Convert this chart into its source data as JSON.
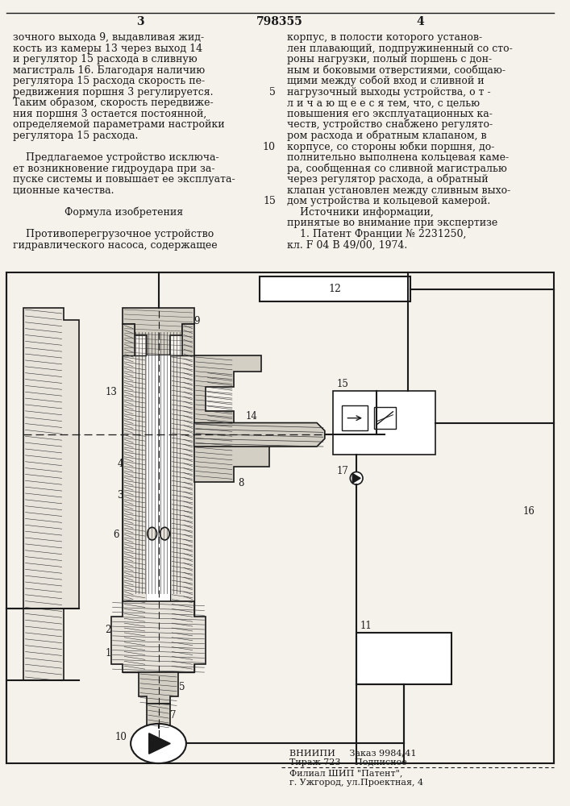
{
  "page_width": 7.07,
  "page_height": 10.0,
  "bg_color": "#f5f2ec",
  "text_color": "#1a1a1a",
  "font_family": "DejaVu Serif",
  "top_header": {
    "left_number": "3",
    "center_number": "798355",
    "right_number": "4"
  },
  "left_col_lines": [
    "зочного выхода 9, выдавливая жид-",
    "кость из камеры 13 через выход 14",
    "и регулятор 15 расхода в сливную",
    "магистраль 16. Благодаря наличию",
    "регулятора 15 расхода скорость пе-",
    "редвижения поршня 3 регулируется.",
    "Таким образом, скорость передвиже-",
    "ния поршня 3 остается постоянной,",
    "определяемой параметрами настройки",
    "регулятора 15 расхода.",
    "",
    "    Предлагаемое устройство исключа-",
    "ет возникновение гидроудара при за-",
    "пуске системы и повышает ее эксплуата-",
    "ционные качества.",
    "",
    "Формула изобретения",
    "",
    "    Противоперегрузочное устройство",
    "гидравлического насоса, содержащее"
  ],
  "right_col_lines": [
    "корпус, в полости которого установ-",
    "лен плавающий, подпружиненный со сто-",
    "роны нагрузки, полый поршень с дон-",
    "ным и боковыми отверстиями, сообщаю-",
    "щими между собой вход и сливной и",
    "нагрузочный выходы устройства, о т -",
    "л и ч а ю щ е е с я тем, что, с целью",
    "повышения его эксплуатационных ка-",
    "честв, устройство снабжено регулято-",
    "ром расхода и обратным клапаном, в",
    "корпусе, со стороны юбки поршня, до-",
    "полнительно выполнена кольцевая каме-",
    "ра, сообщенная со сливной магистралью",
    "через регулятор расхода, а обратный",
    "клапан установлен между сливным выхо-",
    "дом устройства и кольцевой камерой.",
    "    Источники информации,",
    "принятые во внимание при экспертизе",
    "    1. Патент Франции № 2231250,",
    "кл. F 04 В 49/00, 1974."
  ],
  "line_number_positions": {
    "5": 5,
    "10": 10,
    "15": 15
  },
  "footer": {
    "line1": "ВНИИПИ     Заказ 9984/41",
    "line2": "Тираж 723     Подписное",
    "line3": "Филиал ШИП \"Патент\",",
    "line4": "г. Ужгород, ул.Проектная, 4"
  },
  "hatch_color": "#333333",
  "line_color": "#1a1a1a",
  "fill_light": "#e8e4dc",
  "fill_mid": "#d4cfc5",
  "fill_dark": "#c0bab0"
}
